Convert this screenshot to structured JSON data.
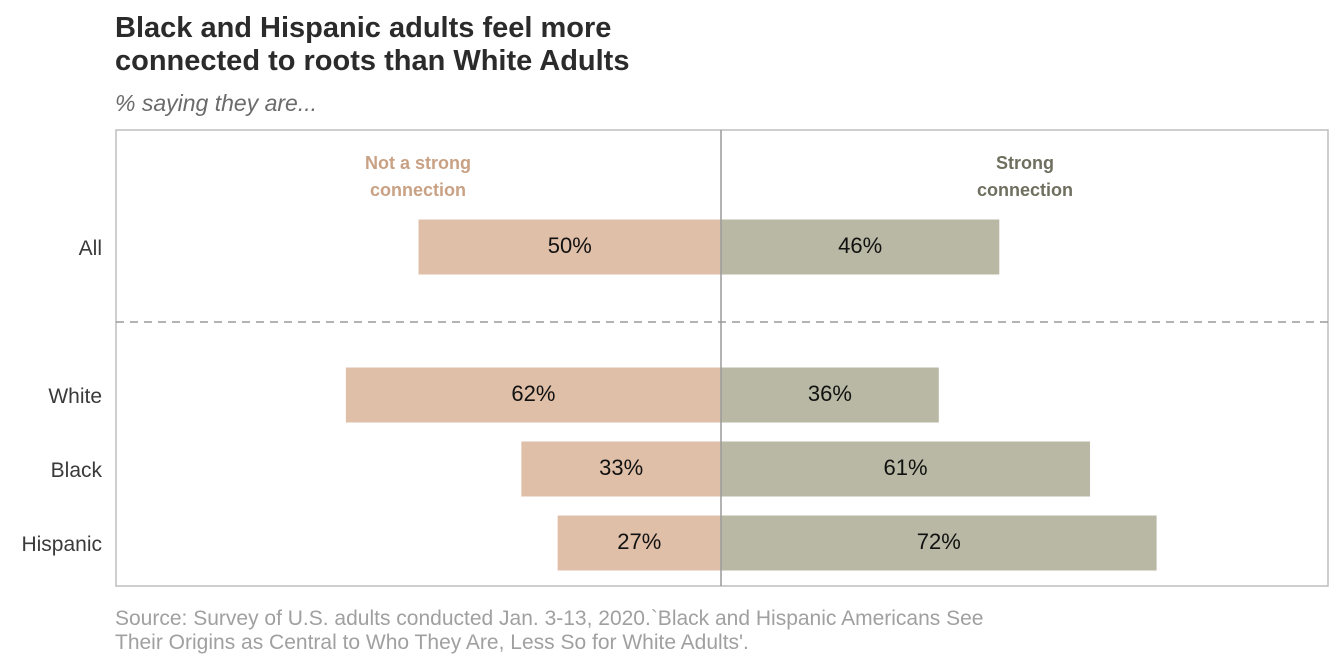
{
  "title_line1": "Black and Hispanic adults feel more",
  "title_line2": "connected to roots than White Adults",
  "subtitle": "% saying they are...",
  "source_line1": "Source: Survey of U.S. adults conducted Jan. 3-13, 2020.`Black and Hispanic Americans See",
  "source_line2": "Their Origins as Central to Who They Are, Less So for White Adults'.",
  "chart_data": {
    "type": "bar",
    "orientation": "diverging-horizontal",
    "categories": [
      "All",
      "White",
      "Black",
      "Hispanic"
    ],
    "series": [
      {
        "name": "Not a strong connection",
        "name_lines": [
          "Not a strong",
          "connection"
        ],
        "values": [
          50,
          62,
          33,
          27
        ],
        "labels": [
          "50%",
          "62%",
          "33%",
          "27%"
        ],
        "color": "#dfbfa8",
        "header_color": "#c9a184"
      },
      {
        "name": "Strong connection",
        "name_lines": [
          "Strong",
          "connection"
        ],
        "values": [
          46,
          36,
          61,
          72
        ],
        "labels": [
          "46%",
          "36%",
          "61%",
          "72%"
        ],
        "color": "#b8b8a4",
        "header_color": "#6f6f5f"
      }
    ],
    "xlim": [
      -100,
      100
    ],
    "grid": false,
    "separator_after": "All"
  }
}
